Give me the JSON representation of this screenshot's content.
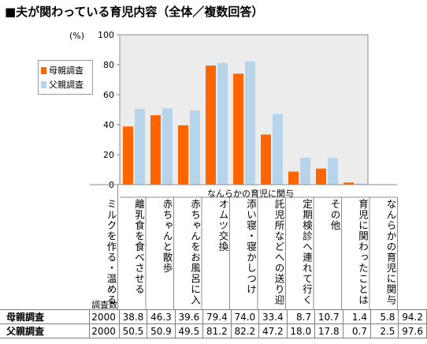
{
  "title": "■夫が関わっている育児内容（全体／複数回答）",
  "y_unit": "(%)",
  "group_label": "なんらかの育児に関与",
  "count_header": "調査数",
  "colors": {
    "mother": "#ff6600",
    "father": "#b8d4ea"
  },
  "chart_data": {
    "type": "bar",
    "categories": [
      "ミルクを作る・温める・飲ませる",
      "離乳食を食べさせる",
      "赤ちゃんと散歩",
      "赤ちゃんをお風呂に入れる",
      "オムツ交換",
      "添い寝・寝かしつけ",
      "託児所などへの送り迎え",
      "定期検診へ連れて行く",
      "その他",
      "育児に関わったことはない",
      "なんらかの育児に関与"
    ],
    "series": [
      {
        "name": "母親調査",
        "n": "2000",
        "values": [
          38.8,
          46.3,
          39.6,
          79.4,
          74.0,
          33.4,
          8.7,
          10.7,
          1.4,
          5.8,
          94.2
        ]
      },
      {
        "name": "父親調査",
        "n": "2000",
        "values": [
          50.5,
          50.9,
          49.5,
          81.2,
          82.2,
          47.2,
          18.0,
          17.8,
          0.7,
          2.5,
          97.6
        ]
      }
    ],
    "bar_count": 9,
    "ylim": [
      0,
      100
    ],
    "yticks": [
      0,
      20,
      40,
      60,
      80,
      100
    ],
    "ylabel": "(%)",
    "legend": "left",
    "grid": false
  }
}
